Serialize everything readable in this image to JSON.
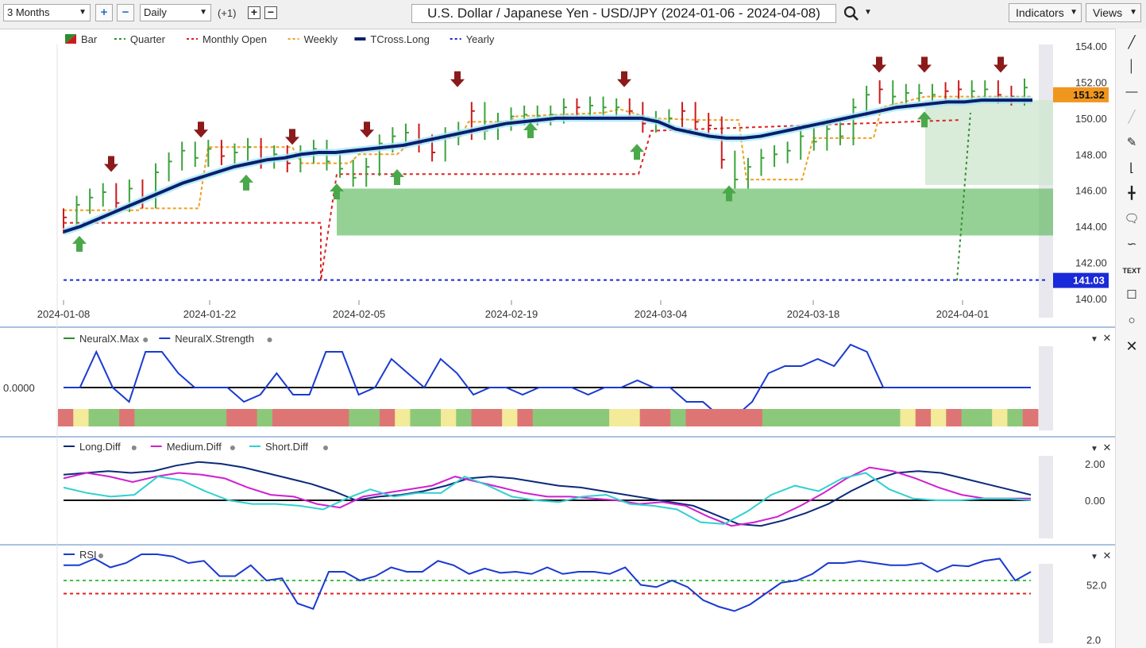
{
  "toolbar": {
    "period": "3 Months",
    "interval": "Daily",
    "offset": "(+1)",
    "title": "U.S. Dollar / Japanese Yen - USD/JPY (2024-01-06 - 2024-04-08)",
    "indicators_label": "Indicators",
    "views_label": "Views"
  },
  "price_panel": {
    "legend": [
      {
        "label": "Bar",
        "color": "#2e8b2e",
        "style": "bar"
      },
      {
        "label": "Quarter",
        "color": "#2e8b2e",
        "style": "dash"
      },
      {
        "label": "Monthly Open",
        "color": "#e02020",
        "style": "dash"
      },
      {
        "label": "Weekly",
        "color": "#f0a020",
        "style": "dash"
      },
      {
        "label": "TCross.Long",
        "color": "#0a1e6e",
        "style": "solid"
      },
      {
        "label": "Yearly",
        "color": "#1a2ad8",
        "style": "dash"
      }
    ],
    "y_ticks": [
      "154.00",
      "152.00",
      "150.00",
      "148.00",
      "146.00",
      "144.00",
      "142.00",
      "140.00"
    ],
    "last_price": "151.32",
    "yearly_level": "141.03",
    "x_ticks": [
      "2024-01-08",
      "2024-01-22",
      "2024-02-05",
      "2024-02-19",
      "2024-03-04",
      "2024-03-18",
      "2024-04-01"
    ]
  },
  "neuralx_panel": {
    "legend": [
      {
        "label": "NeuralX.Max",
        "color": "#2e8b2e"
      },
      {
        "label": "NeuralX.Strength",
        "color": "#1a3ad0"
      }
    ],
    "zero_label": "0.0000"
  },
  "diff_panel": {
    "legend": [
      {
        "label": "Long.Diff",
        "color": "#0a2a7a"
      },
      {
        "label": "Medium.Diff",
        "color": "#d020d0"
      },
      {
        "label": "Short.Diff",
        "color": "#30d0d0"
      }
    ],
    "y_ticks": [
      "2.00",
      "0.00"
    ]
  },
  "rsi_panel": {
    "legend": [
      {
        "label": "RSI",
        "color": "#1a3ad0"
      }
    ],
    "y_ticks": [
      "52.0",
      "2.0"
    ]
  },
  "chart_data": {
    "type": "line",
    "price": {
      "ylim": [
        140,
        154
      ],
      "x_start": "2024-01-08",
      "bar_colors": [
        "r",
        "g",
        "g",
        "g",
        "r",
        "g",
        "r",
        "g",
        "g",
        "g",
        "g",
        "g",
        "r",
        "g",
        "g",
        "r",
        "g",
        "r",
        "g",
        "g",
        "g",
        "g",
        "g",
        "g",
        "g",
        "g",
        "g",
        "r",
        "r",
        "g",
        "g",
        "r",
        "g",
        "g",
        "g",
        "g",
        "g",
        "g",
        "g",
        "r",
        "g",
        "g",
        "g",
        "r",
        "r",
        "g",
        "g",
        "r",
        "r",
        "r",
        "r",
        "g",
        "g",
        "g",
        "g",
        "g",
        "g",
        "g",
        "g",
        "g",
        "g",
        "g",
        "r",
        "g",
        "g",
        "g",
        "g",
        "r",
        "r",
        "g",
        "g",
        "r",
        "r",
        "g"
      ],
      "close": [
        144.5,
        145.2,
        145.6,
        145.9,
        145.3,
        146.1,
        145.5,
        147.0,
        147.6,
        148.2,
        147.8,
        148.3,
        147.9,
        148.1,
        148.4,
        147.7,
        148.0,
        147.5,
        148.0,
        148.3,
        147.6,
        147.2,
        146.7,
        147.3,
        148.6,
        149.0,
        149.2,
        148.6,
        148.1,
        149.0,
        149.3,
        150.4,
        149.3,
        149.8,
        150.1,
        150.2,
        150.1,
        150.2,
        150.6,
        150.6,
        150.7,
        150.6,
        150.6,
        150.4,
        149.7,
        149.9,
        150.0,
        150.4,
        149.8,
        149.6,
        147.7,
        146.6,
        147.3,
        147.8,
        148.0,
        148.2,
        149.0,
        148.7,
        149.4,
        149.0,
        150.6,
        151.3,
        151.6,
        151.2,
        151.4,
        151.4,
        151.3,
        151.5,
        151.6,
        151.5,
        151.6,
        151.3,
        151.2,
        151.7
      ],
      "tcross_long": [
        143.7,
        144.0,
        144.4,
        144.8,
        145.2,
        145.6,
        146.0,
        146.4,
        146.7,
        147.0,
        147.3,
        147.5,
        147.7,
        147.8,
        148.0,
        148.1,
        148.1,
        148.2,
        148.3,
        148.4,
        148.5,
        148.7,
        148.9,
        149.1,
        149.3,
        149.5,
        149.7,
        149.8,
        149.9,
        150.0,
        150.0,
        150.0,
        150.0,
        150.0,
        150.0,
        149.8,
        149.4,
        149.2,
        149.0,
        148.9,
        148.9,
        149.0,
        149.2,
        149.4,
        149.6,
        149.8,
        150.0,
        150.2,
        150.4,
        150.6,
        150.7,
        150.8,
        150.9,
        150.9,
        151.0,
        151.0,
        151.0,
        151.0
      ],
      "yearly": 141.03,
      "last": 151.32
    },
    "neuralx_strength": [
      0.0,
      0.0,
      0.5,
      0.0,
      -0.2,
      0.5,
      0.5,
      0.2,
      0.0,
      0.0,
      0.0,
      -0.2,
      -0.1,
      0.2,
      -0.1,
      -0.1,
      0.5,
      0.5,
      -0.1,
      0.0,
      0.4,
      0.2,
      0.0,
      0.4,
      0.2,
      -0.1,
      0.0,
      0.0,
      -0.1,
      0.0,
      0.0,
      0.0,
      -0.1,
      0.0,
      0.0,
      0.1,
      0.0,
      0.0,
      -0.2,
      -0.2,
      -0.4,
      -0.4,
      -0.2,
      0.2,
      0.3,
      0.3,
      0.4,
      0.3,
      0.6,
      0.5,
      0.0,
      0.0,
      0.0,
      0.0,
      0.0,
      0.0,
      0.0,
      0.0,
      0.0,
      0.0
    ],
    "neuralx_state": [
      "r",
      "y",
      "g",
      "g",
      "r",
      "g",
      "g",
      "g",
      "g",
      "g",
      "g",
      "r",
      "r",
      "g",
      "r",
      "r",
      "r",
      "r",
      "r",
      "g",
      "g",
      "r",
      "y",
      "g",
      "g",
      "y",
      "g",
      "r",
      "r",
      "y",
      "r",
      "g",
      "g",
      "g",
      "g",
      "g",
      "y",
      "y",
      "r",
      "r",
      "g",
      "r",
      "r",
      "r",
      "r",
      "r",
      "g",
      "g",
      "g",
      "g",
      "g",
      "g",
      "g",
      "g",
      "g",
      "y",
      "r",
      "y",
      "r",
      "g",
      "g",
      "y",
      "g",
      "r"
    ],
    "long_diff": [
      1.4,
      1.5,
      1.6,
      1.5,
      1.6,
      1.9,
      2.1,
      2.0,
      1.8,
      1.5,
      1.2,
      0.9,
      0.5,
      0.0,
      0.2,
      0.3,
      0.5,
      0.8,
      1.2,
      1.3,
      1.2,
      1.0,
      0.8,
      0.7,
      0.5,
      0.3,
      0.1,
      -0.1,
      -0.3,
      -0.8,
      -1.3,
      -1.4,
      -1.1,
      -0.7,
      -0.2,
      0.5,
      1.1,
      1.5,
      1.6,
      1.5,
      1.2,
      0.9,
      0.6,
      0.3
    ],
    "medium_diff": [
      1.2,
      1.5,
      1.3,
      1.0,
      1.3,
      1.5,
      1.4,
      1.2,
      0.7,
      0.3,
      0.2,
      -0.2,
      -0.4,
      0.2,
      0.4,
      0.6,
      0.8,
      1.3,
      1.0,
      0.7,
      0.4,
      0.2,
      0.2,
      0.1,
      0.0,
      -0.2,
      -0.1,
      -0.3,
      -0.9,
      -1.4,
      -1.2,
      -0.9,
      -0.3,
      0.4,
      1.2,
      1.8,
      1.6,
      1.2,
      0.7,
      0.3,
      0.1,
      0.1,
      0.1
    ],
    "short_diff": [
      0.7,
      0.4,
      0.2,
      0.3,
      1.3,
      1.1,
      0.5,
      0.0,
      -0.2,
      -0.2,
      -0.3,
      -0.5,
      0.1,
      0.6,
      0.2,
      0.4,
      0.4,
      1.3,
      0.8,
      0.2,
      0.0,
      -0.1,
      0.2,
      0.3,
      -0.2,
      -0.3,
      -0.5,
      -1.2,
      -1.3,
      -0.6,
      0.3,
      0.8,
      0.5,
      1.2,
      1.5,
      0.6,
      0.1,
      0.0,
      0.0,
      0.1,
      0.1,
      0.0
    ],
    "rsi": [
      70,
      70,
      76,
      68,
      72,
      80,
      80,
      78,
      72,
      74,
      60,
      60,
      70,
      56,
      58,
      35,
      30,
      64,
      64,
      56,
      60,
      68,
      64,
      64,
      74,
      70,
      62,
      67,
      63,
      64,
      62,
      68,
      62,
      64,
      64,
      62,
      68,
      52,
      50,
      56,
      50,
      38,
      32,
      28,
      34,
      44,
      54,
      56,
      62,
      72,
      72,
      74,
      72,
      70,
      70,
      72,
      64,
      70,
      69,
      74,
      76,
      56,
      64
    ],
    "rsi_lines": [
      56,
      44
    ]
  }
}
